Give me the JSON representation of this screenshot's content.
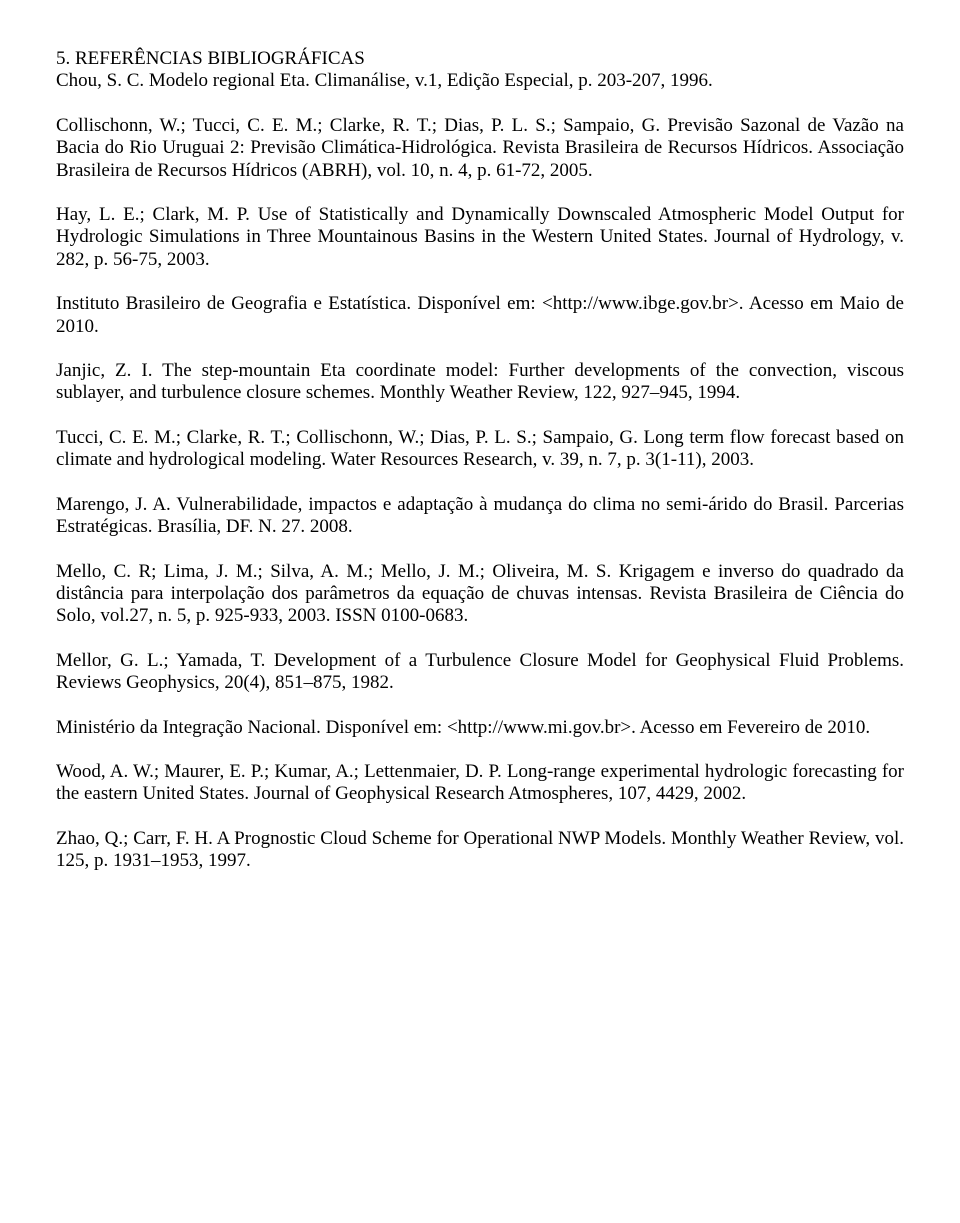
{
  "heading": "5. REFERÊNCIAS BIBLIOGRÁFICAS",
  "refs": [
    "Chou, S. C. Modelo regional Eta. Climanálise, v.1, Edição Especial, p. 203-207, 1996.",
    "Collischonn, W.; Tucci, C. E. M.; Clarke, R. T.; Dias, P. L. S.; Sampaio, G. Previsão Sazonal de Vazão na Bacia do Rio Uruguai 2: Previsão Climática-Hidrológica. Revista Brasileira de Recursos Hídricos. Associação Brasileira de Recursos Hídricos (ABRH), vol. 10, n. 4, p. 61-72, 2005.",
    "Hay, L. E.; Clark, M. P. Use of Statistically and Dynamically Downscaled Atmospheric Model Output for Hydrologic Simulations in Three Mountainous Basins in the Western United States. Journal of Hydrology, v. 282, p. 56-75, 2003.",
    "Instituto Brasileiro de Geografia e Estatística. Disponível em: <http://www.ibge.gov.br>. Acesso em Maio de 2010.",
    "Janjic, Z. I. The step-mountain Eta coordinate model: Further developments of the convection, viscous sublayer, and turbulence closure schemes. Monthly Weather Review, 122, 927–945, 1994.",
    "Tucci, C. E. M.; Clarke, R. T.; Collischonn, W.; Dias, P. L. S.; Sampaio, G. Long term flow forecast based on climate and hydrological modeling. Water Resources Research, v. 39, n. 7, p. 3(1-11), 2003.",
    "Marengo, J. A. Vulnerabilidade, impactos e adaptação à mudança do clima no semi-árido do Brasil. Parcerias Estratégicas. Brasília, DF. N. 27. 2008.",
    "Mello, C. R; Lima, J. M.; Silva, A. M.; Mello, J. M.; Oliveira, M. S. Krigagem e inverso do quadrado da distância para interpolação dos parâmetros da equação de chuvas intensas. Revista Brasileira de Ciência do Solo, vol.27, n. 5, p. 925-933, 2003. ISSN 0100-0683.",
    "Mellor, G. L.; Yamada, T. Development of a Turbulence Closure Model for Geophysical Fluid Problems. Reviews Geophysics, 20(4), 851–875, 1982.",
    "Ministério da Integração Nacional. Disponível em: <http://www.mi.gov.br>. Acesso em Fevereiro de 2010.",
    "Wood, A. W.; Maurer, E. P.; Kumar, A.; Lettenmaier, D. P. Long-range experimental hydrologic forecasting for the eastern United States. Journal of Geophysical Research Atmospheres, 107, 4429, 2002.",
    "Zhao, Q.; Carr, F. H. A Prognostic Cloud Scheme for Operational NWP Models. Monthly Weather Review, vol. 125, p. 1931–1953, 1997."
  ]
}
